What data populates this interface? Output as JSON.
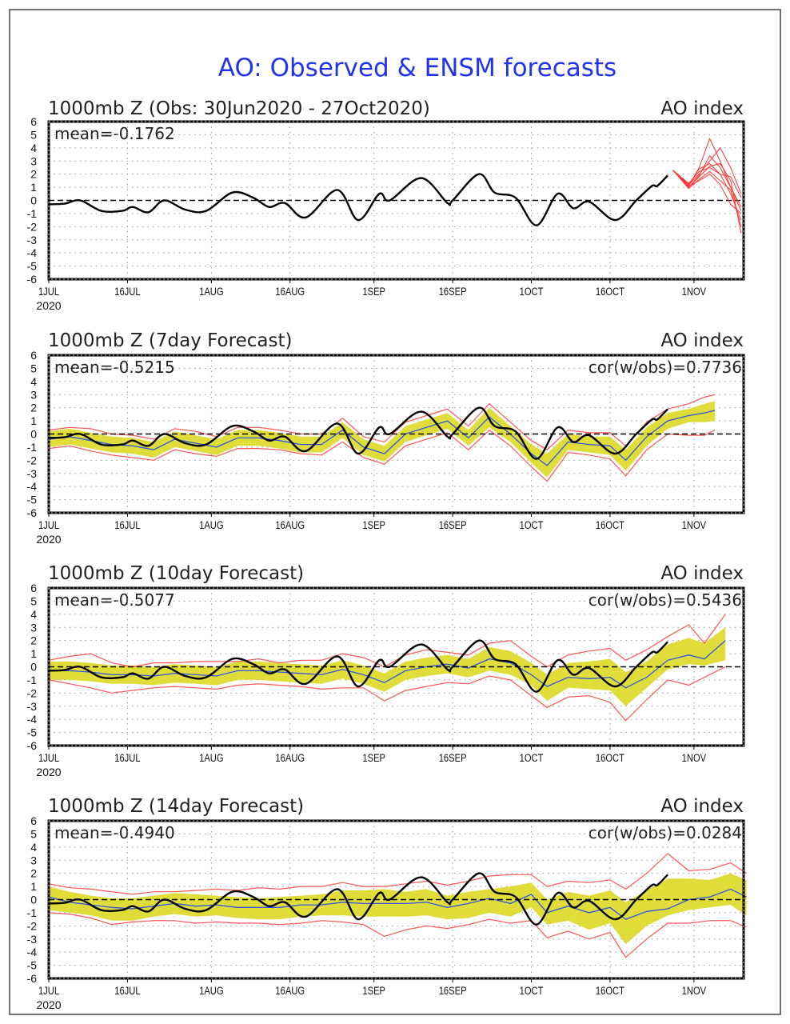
{
  "title": "AO: Observed & ENSM forecasts",
  "colors": {
    "title": "#2233ee",
    "observed": "#000000",
    "ensemble_mean": "#3355dd",
    "spread_band": "#e0dc3a",
    "range_lines": "#ff5555",
    "ensemble_members": "#ff3333"
  },
  "chart_data": [
    {
      "type": "line",
      "title": "1000mb Z (Obs: 30Jun2020 - 27Oct2020)",
      "right_label": "AO index",
      "stat_left": "mean=-0.1762",
      "ylim": [
        -6,
        6
      ],
      "yticks": [
        -6,
        -5,
        -4,
        -3,
        -2,
        -1,
        0,
        1,
        2,
        3,
        4,
        5,
        6
      ],
      "xticks": [
        {
          "date": "2020-07-01",
          "label": "1JUL",
          "sub": "2020"
        },
        {
          "date": "2020-07-16",
          "label": "16JUL"
        },
        {
          "date": "2020-08-01",
          "label": "1AUG"
        },
        {
          "date": "2020-08-16",
          "label": "16AUG"
        },
        {
          "date": "2020-09-01",
          "label": "1SEP"
        },
        {
          "date": "2020-09-16",
          "label": "16SEP"
        },
        {
          "date": "2020-10-01",
          "label": "1OCT"
        },
        {
          "date": "2020-10-16",
          "label": "16OCT"
        },
        {
          "date": "2020-11-01",
          "label": "1NOV"
        }
      ],
      "grid": true,
      "observed": {
        "x": [
          "2020-07-01",
          "2020-07-04",
          "2020-07-07",
          "2020-07-11",
          "2020-07-15",
          "2020-07-17",
          "2020-07-20",
          "2020-07-23",
          "2020-07-27",
          "2020-07-31",
          "2020-08-05",
          "2020-08-09",
          "2020-08-12",
          "2020-08-15",
          "2020-08-19",
          "2020-08-25",
          "2020-08-29",
          "2020-09-02",
          "2020-09-04",
          "2020-09-10",
          "2020-09-15",
          "2020-09-16",
          "2020-09-21",
          "2020-09-24",
          "2020-09-28",
          "2020-10-02",
          "2020-10-06",
          "2020-10-09",
          "2020-10-12",
          "2020-10-17",
          "2020-10-21",
          "2020-10-24",
          "2020-10-25",
          "2020-10-27"
        ],
        "y": [
          -0.3,
          -0.25,
          0,
          -0.8,
          -0.8,
          -0.5,
          -0.9,
          0,
          -0.7,
          -0.8,
          0.6,
          0.2,
          -0.5,
          -0.2,
          -1.3,
          0.8,
          -1.5,
          0.5,
          0,
          1.7,
          -0.2,
          0,
          2.0,
          0.6,
          0.2,
          -1.9,
          0.5,
          -0.6,
          -0.1,
          -1.5,
          0,
          1.1,
          1.1,
          1.9
        ]
      },
      "members": {
        "x": [
          "2020-10-28",
          "2020-10-31",
          "2020-11-02",
          "2020-11-04",
          "2020-11-06",
          "2020-11-08",
          "2020-11-10"
        ],
        "series": [
          [
            2.3,
            1.1,
            2.5,
            4.7,
            3.0,
            1.0,
            -0.5
          ],
          [
            2.3,
            1.2,
            2.0,
            3.0,
            4.0,
            2.5,
            0.5
          ],
          [
            2.3,
            1.0,
            1.8,
            2.6,
            2.8,
            1.5,
            -2.5
          ],
          [
            2.3,
            1.3,
            2.2,
            2.5,
            2.0,
            0.5,
            -1.5
          ],
          [
            2.3,
            1.1,
            1.5,
            2.0,
            1.2,
            -0.3,
            -1.0
          ],
          [
            2.3,
            1.2,
            2.4,
            2.8,
            2.0,
            1.8,
            0.2
          ],
          [
            2.3,
            0.9,
            1.6,
            2.2,
            1.5,
            0.8,
            -2.0
          ],
          [
            2.3,
            1.0,
            1.9,
            3.4,
            2.5,
            1.0,
            -0.8
          ]
        ]
      }
    },
    {
      "type": "line",
      "title": "1000mb Z (7day Forecast)",
      "right_label": "AO index",
      "stat_left": "mean=-0.5215",
      "stat_right": "cor(w/obs)=0.7736",
      "ylim": [
        -6,
        6
      ],
      "forecast": {
        "x": [
          "2020-07-01",
          "2020-07-05",
          "2020-07-09",
          "2020-07-13",
          "2020-07-17",
          "2020-07-21",
          "2020-07-25",
          "2020-07-29",
          "2020-08-02",
          "2020-08-06",
          "2020-08-10",
          "2020-08-14",
          "2020-08-18",
          "2020-08-22",
          "2020-08-26",
          "2020-08-30",
          "2020-09-03",
          "2020-09-07",
          "2020-09-11",
          "2020-09-15",
          "2020-09-19",
          "2020-09-23",
          "2020-09-27",
          "2020-10-01",
          "2020-10-04",
          "2020-10-08",
          "2020-10-12",
          "2020-10-16",
          "2020-10-19",
          "2020-10-23",
          "2020-10-27",
          "2020-10-31",
          "2020-11-03",
          "2020-11-05"
        ],
        "mean": [
          -0.4,
          -0.2,
          -0.5,
          -0.8,
          -0.9,
          -1.2,
          -0.4,
          -0.7,
          -1.0,
          -0.3,
          -0.3,
          -0.5,
          -0.8,
          -0.8,
          0.3,
          -1.0,
          -1.5,
          0.0,
          0.5,
          1.0,
          -0.3,
          1.3,
          0.0,
          -1.5,
          -2.4,
          -0.6,
          -0.8,
          -0.9,
          -2.0,
          -0.2,
          1.0,
          1.4,
          1.6,
          1.8
        ],
        "band_lo": [
          -1.0,
          -0.8,
          -1.1,
          -1.4,
          -1.5,
          -1.8,
          -1.0,
          -1.3,
          -1.6,
          -0.9,
          -0.9,
          -1.1,
          -1.4,
          -1.4,
          -0.3,
          -1.6,
          -2.1,
          -0.6,
          -0.1,
          0.4,
          -0.9,
          0.5,
          -0.6,
          -2.2,
          -3.3,
          -1.2,
          -1.4,
          -1.6,
          -2.8,
          -0.9,
          0.4,
          0.9,
          0.9,
          1.0
        ],
        "band_hi": [
          0.2,
          0.4,
          0.1,
          -0.2,
          -0.3,
          -0.6,
          0.2,
          -0.1,
          -0.4,
          0.3,
          0.3,
          0.1,
          -0.2,
          -0.2,
          0.9,
          -0.4,
          -0.9,
          0.6,
          1.1,
          1.6,
          0.3,
          2.0,
          0.6,
          -0.8,
          -1.5,
          0.0,
          -0.2,
          -0.2,
          -1.2,
          0.5,
          1.6,
          1.9,
          2.3,
          2.5
        ],
        "range_lo": [
          -1.1,
          -0.9,
          -1.3,
          -1.6,
          -1.8,
          -2.0,
          -1.2,
          -1.5,
          -1.7,
          -1.1,
          -1.1,
          -1.2,
          -1.5,
          -1.6,
          -0.6,
          -1.8,
          -2.3,
          -0.9,
          -0.4,
          0.1,
          -1.2,
          0.3,
          -0.9,
          -2.5,
          -3.6,
          -1.4,
          -1.6,
          -1.9,
          -3.2,
          -1.2,
          0.0,
          -0.1,
          -0.1,
          0.3
        ],
        "range_hi": [
          0.3,
          0.5,
          0.4,
          0.0,
          -0.1,
          -0.4,
          0.4,
          0.2,
          -0.2,
          0.5,
          0.5,
          0.3,
          0.0,
          0.0,
          1.2,
          -0.2,
          -0.6,
          0.9,
          1.4,
          1.9,
          0.6,
          2.3,
          0.9,
          -0.5,
          -1.2,
          0.3,
          0.1,
          0.1,
          -0.9,
          0.9,
          1.9,
          2.3,
          2.8,
          3.0
        ]
      }
    },
    {
      "type": "line",
      "title": "1000mb Z (10day Forecast)",
      "right_label": "AO index",
      "stat_left": "mean=-0.5077",
      "stat_right": "cor(w/obs)=0.5436",
      "ylim": [
        -6,
        6
      ],
      "forecast": {
        "x": [
          "2020-07-01",
          "2020-07-05",
          "2020-07-09",
          "2020-07-13",
          "2020-07-17",
          "2020-07-21",
          "2020-07-25",
          "2020-07-29",
          "2020-08-02",
          "2020-08-06",
          "2020-08-10",
          "2020-08-14",
          "2020-08-18",
          "2020-08-22",
          "2020-08-26",
          "2020-08-30",
          "2020-09-03",
          "2020-09-07",
          "2020-09-11",
          "2020-09-15",
          "2020-09-19",
          "2020-09-23",
          "2020-09-27",
          "2020-10-01",
          "2020-10-04",
          "2020-10-08",
          "2020-10-12",
          "2020-10-16",
          "2020-10-19",
          "2020-10-23",
          "2020-10-27",
          "2020-10-31",
          "2020-11-03",
          "2020-11-07"
        ],
        "mean": [
          -0.3,
          -0.3,
          -0.4,
          -0.6,
          -0.6,
          -0.7,
          -0.5,
          -0.6,
          -0.7,
          -0.3,
          -0.3,
          -0.4,
          -0.5,
          -0.6,
          -0.2,
          -0.6,
          -1.2,
          -0.3,
          0.0,
          0.2,
          -0.1,
          0.6,
          0.3,
          -0.6,
          -1.5,
          -0.8,
          -0.9,
          -0.8,
          -1.6,
          -0.8,
          0.5,
          0.9,
          0.6,
          2.0
        ],
        "band_lo": [
          -1.0,
          -1.0,
          -1.1,
          -1.3,
          -1.3,
          -1.4,
          -1.2,
          -1.3,
          -1.4,
          -1.0,
          -1.0,
          -1.1,
          -1.2,
          -1.3,
          -0.9,
          -1.3,
          -1.9,
          -1.0,
          -0.7,
          -0.5,
          -0.8,
          -0.3,
          -0.6,
          -1.4,
          -2.6,
          -1.6,
          -1.7,
          -1.8,
          -3.0,
          -1.6,
          -0.2,
          0.2,
          0.1,
          0.5
        ],
        "band_hi": [
          0.4,
          0.4,
          0.3,
          0.1,
          0.1,
          0.0,
          0.2,
          0.1,
          0.0,
          0.4,
          0.4,
          0.3,
          0.2,
          0.1,
          0.5,
          0.1,
          -0.5,
          0.4,
          0.7,
          0.9,
          0.6,
          1.5,
          1.2,
          0.3,
          -0.6,
          0.3,
          0.4,
          0.6,
          -0.4,
          0.4,
          1.7,
          2.2,
          1.8,
          3.0
        ],
        "range_lo": [
          -1.0,
          -1.3,
          -1.6,
          -2.0,
          -1.8,
          -1.6,
          -1.5,
          -1.6,
          -1.7,
          -1.4,
          -1.3,
          -1.4,
          -1.5,
          -1.7,
          -1.6,
          -1.6,
          -2.6,
          -1.8,
          -1.5,
          -1.2,
          -1.3,
          -0.7,
          -1.0,
          -2.2,
          -3.1,
          -2.3,
          -2.2,
          -2.7,
          -4.1,
          -2.5,
          -1.0,
          -1.4,
          -0.8,
          0.0
        ],
        "range_hi": [
          0.5,
          0.8,
          1.0,
          0.3,
          0.0,
          0.3,
          0.3,
          0.4,
          0.4,
          0.4,
          0.6,
          0.3,
          0.5,
          0.5,
          1.0,
          0.7,
          0.0,
          0.9,
          1.3,
          1.1,
          0.9,
          1.8,
          2.0,
          0.8,
          0.0,
          0.9,
          1.2,
          1.4,
          0.5,
          1.3,
          2.3,
          3.2,
          1.8,
          4.0
        ]
      }
    },
    {
      "type": "line",
      "title": "1000mb Z (14day Forecast)",
      "right_label": "AO index",
      "stat_left": "mean=-0.4940",
      "stat_right": "cor(w/obs)=0.0284",
      "ylim": [
        -6,
        6
      ],
      "forecast": {
        "x": [
          "2020-07-01",
          "2020-07-05",
          "2020-07-09",
          "2020-07-13",
          "2020-07-17",
          "2020-07-21",
          "2020-07-25",
          "2020-07-29",
          "2020-08-02",
          "2020-08-06",
          "2020-08-10",
          "2020-08-14",
          "2020-08-18",
          "2020-08-22",
          "2020-08-26",
          "2020-08-30",
          "2020-09-03",
          "2020-09-07",
          "2020-09-11",
          "2020-09-15",
          "2020-09-19",
          "2020-09-23",
          "2020-09-27",
          "2020-10-01",
          "2020-10-04",
          "2020-10-08",
          "2020-10-12",
          "2020-10-16",
          "2020-10-19",
          "2020-10-23",
          "2020-10-27",
          "2020-10-31",
          "2020-11-04",
          "2020-11-08",
          "2020-11-11"
        ],
        "mean": [
          0.2,
          -0.2,
          -0.4,
          -0.6,
          -0.7,
          -0.5,
          -0.3,
          -0.5,
          -0.4,
          -0.6,
          -0.6,
          -0.6,
          -0.4,
          -0.4,
          -0.2,
          -0.3,
          -0.3,
          -0.3,
          -0.2,
          -0.6,
          -0.3,
          0.1,
          -0.3,
          0.4,
          -1.0,
          -0.5,
          -1.0,
          -0.6,
          -1.5,
          -0.9,
          -0.7,
          0.0,
          0.2,
          0.8,
          0.2
        ],
        "band_lo": [
          -0.8,
          -1.0,
          -1.2,
          -1.6,
          -1.6,
          -1.3,
          -1.1,
          -1.3,
          -1.2,
          -1.4,
          -1.5,
          -1.5,
          -1.3,
          -1.2,
          -1.2,
          -1.3,
          -1.3,
          -1.3,
          -1.2,
          -1.5,
          -1.4,
          -1.0,
          -1.3,
          -0.6,
          -1.9,
          -1.6,
          -2.3,
          -1.8,
          -3.4,
          -2.0,
          -1.2,
          -0.8,
          -0.6,
          -0.4,
          -1.2
        ],
        "band_hi": [
          1.0,
          0.6,
          0.3,
          0.1,
          0.1,
          0.3,
          0.5,
          0.4,
          0.3,
          0.2,
          0.1,
          0.2,
          0.3,
          0.4,
          0.7,
          0.7,
          0.8,
          0.6,
          0.8,
          0.3,
          0.6,
          0.8,
          1.0,
          1.3,
          0.0,
          0.6,
          0.3,
          0.7,
          -0.2,
          0.7,
          1.6,
          1.6,
          1.5,
          2.0,
          1.5
        ],
        "range_lo": [
          -1.0,
          -1.1,
          -1.4,
          -1.9,
          -1.7,
          -1.6,
          -1.6,
          -1.8,
          -1.7,
          -1.8,
          -1.8,
          -1.9,
          -1.8,
          -1.6,
          -1.7,
          -1.9,
          -2.8,
          -2.3,
          -2.0,
          -2.2,
          -1.9,
          -1.5,
          -1.8,
          -1.6,
          -2.9,
          -2.4,
          -3.0,
          -2.5,
          -4.4,
          -3.0,
          -1.8,
          -1.8,
          -1.6,
          -1.6,
          -2.1
        ],
        "range_hi": [
          1.2,
          0.9,
          0.8,
          0.6,
          0.4,
          0.6,
          0.6,
          0.7,
          0.8,
          0.7,
          0.9,
          0.8,
          1.0,
          1.0,
          1.3,
          1.0,
          1.0,
          1.2,
          1.4,
          1.1,
          1.4,
          1.8,
          1.9,
          1.9,
          1.0,
          1.4,
          1.3,
          1.5,
          0.8,
          2.0,
          3.5,
          2.2,
          2.3,
          2.8,
          2.0
        ]
      }
    }
  ]
}
